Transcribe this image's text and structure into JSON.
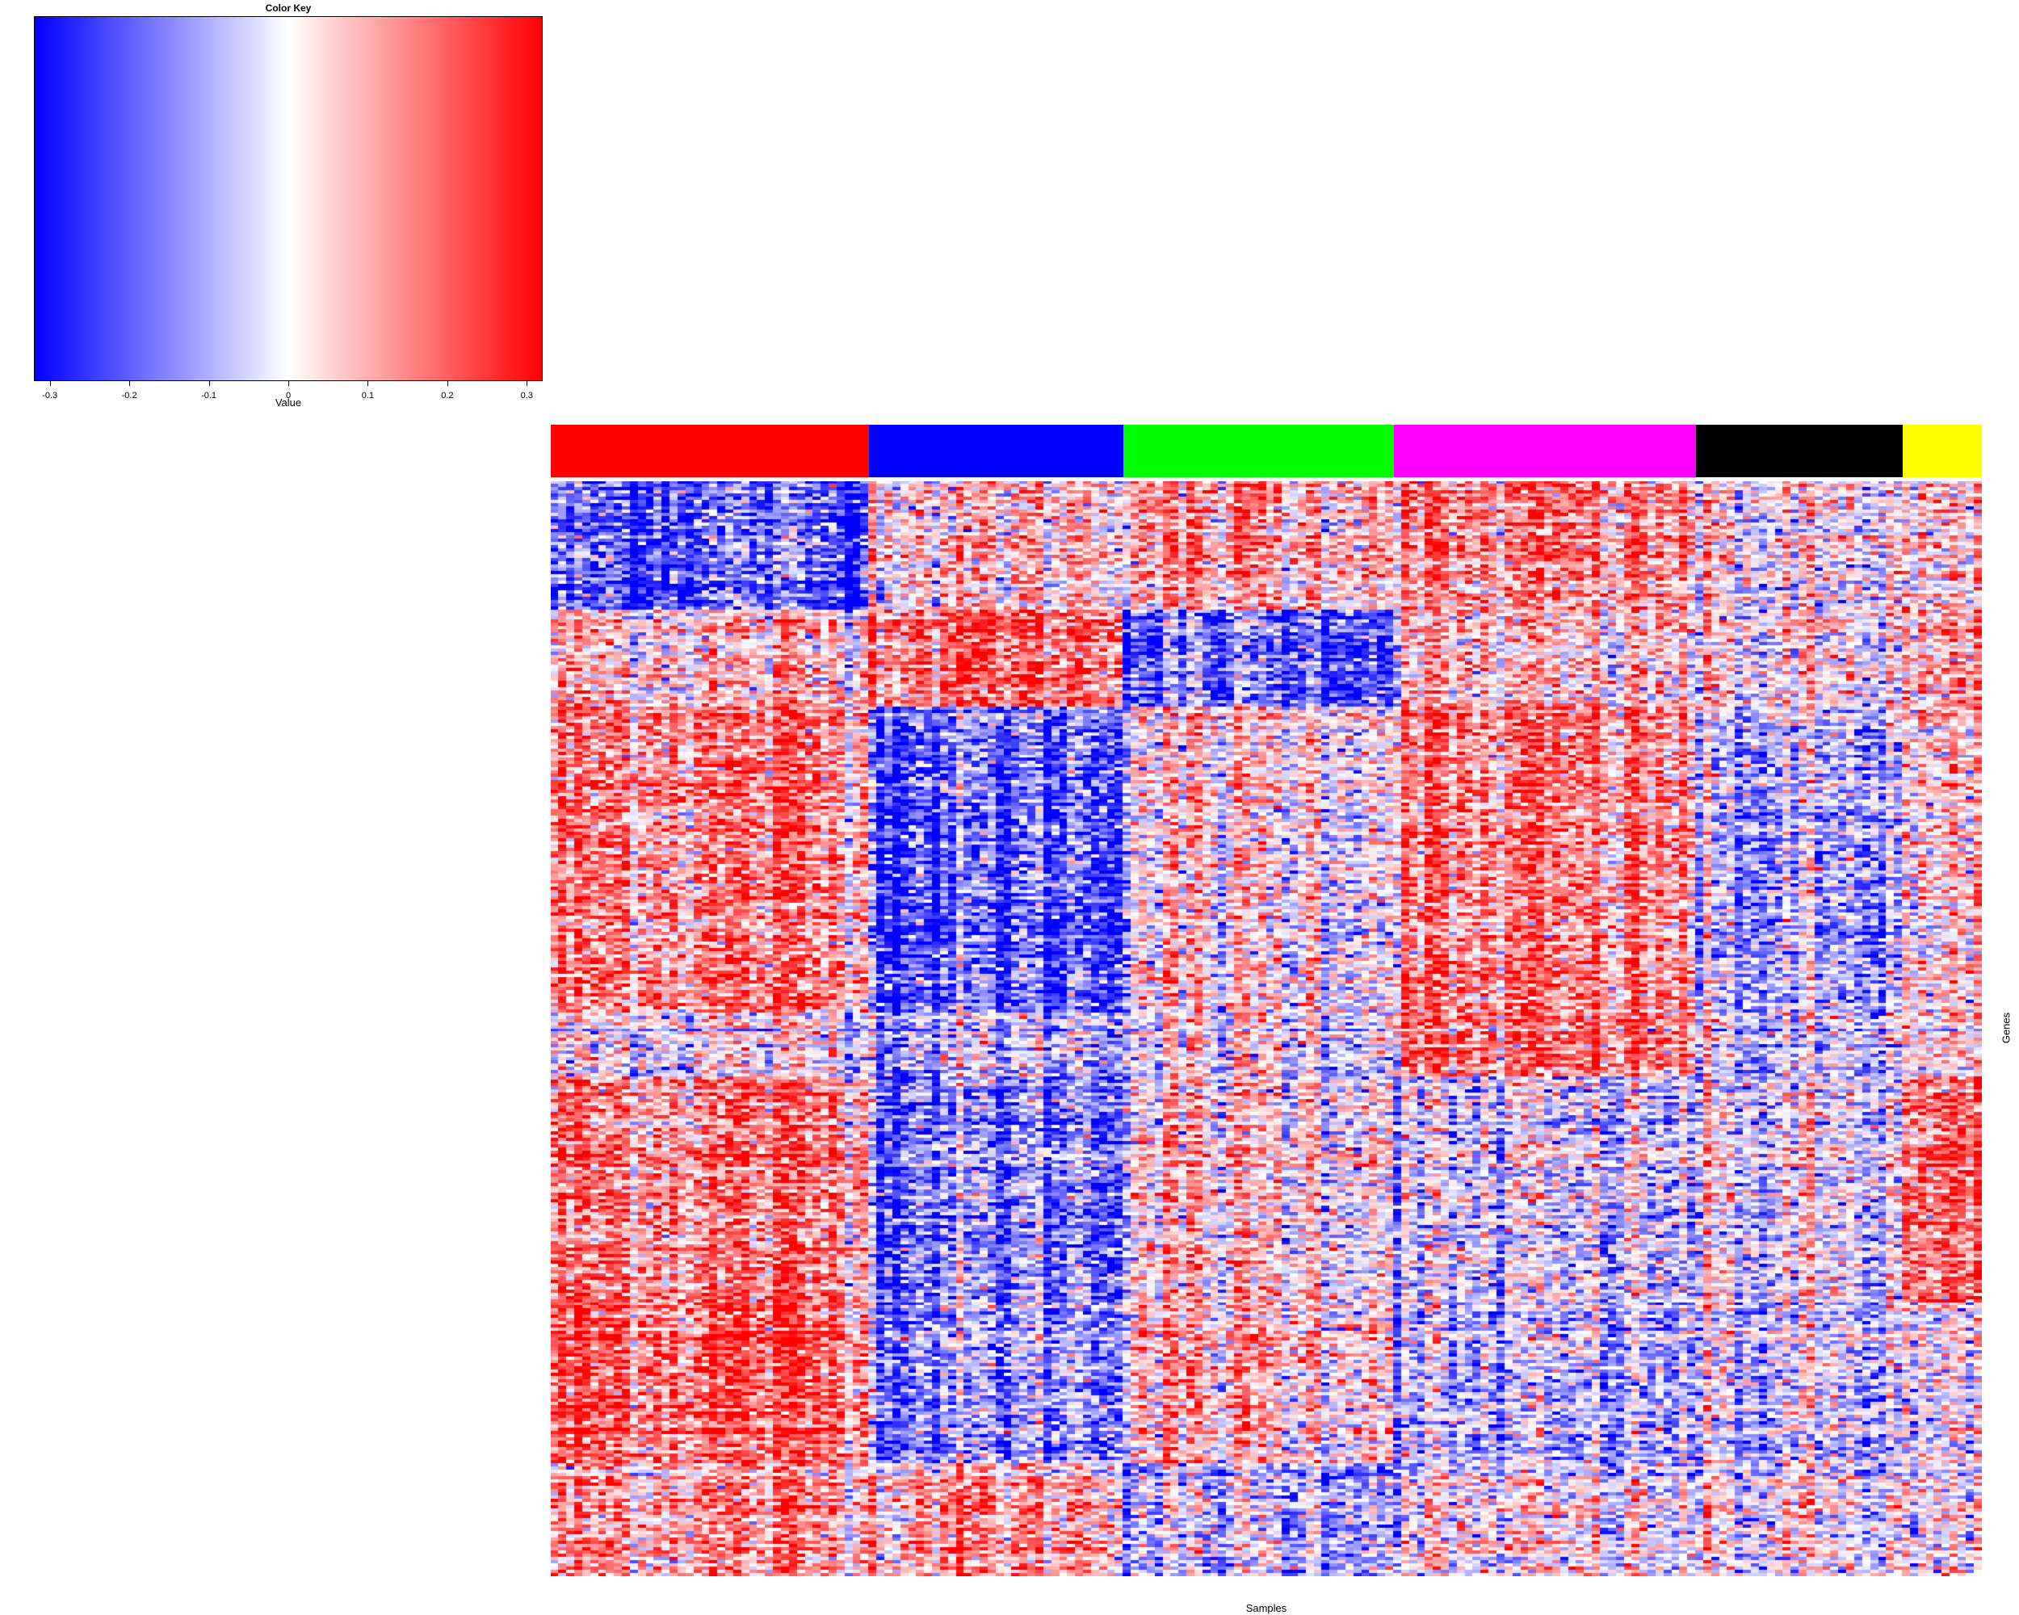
{
  "chart_data": {
    "type": "heatmap",
    "title": "",
    "xlabel": "Samples",
    "ylabel": "Genes",
    "color_key": {
      "title": "Color Key",
      "xlabel": "Value",
      "range": [
        -0.32,
        0.32
      ],
      "ticks": [
        -0.3,
        -0.2,
        -0.1,
        0,
        0.1,
        0.2,
        0.3
      ],
      "tick_labels": [
        "-0.3",
        "-0.2",
        "-0.1",
        "0",
        "0.1",
        "0.2",
        "0.3"
      ],
      "low_color": "#0000ff",
      "mid_color": "#ffffff",
      "high_color": "#ff0000"
    },
    "n_samples": 180,
    "n_genes": 340,
    "column_groups": [
      {
        "color": "#ff0000",
        "n_samples": 40
      },
      {
        "color": "#0000ff",
        "n_samples": 32
      },
      {
        "color": "#00ff00",
        "n_samples": 34
      },
      {
        "color": "#ff00ff",
        "n_samples": 38
      },
      {
        "color": "#000000",
        "n_samples": 26
      },
      {
        "color": "#ffff00",
        "n_samples": 10
      }
    ],
    "row_blocks": [
      {
        "n_genes": 40,
        "group_means": [
          -0.15,
          0.05,
          0.08,
          0.1,
          0.0,
          0.0
        ]
      },
      {
        "n_genes": 30,
        "group_means": [
          0.05,
          0.15,
          -0.15,
          0.03,
          0.0,
          0.05
        ]
      },
      {
        "n_genes": 95,
        "group_means": [
          0.12,
          -0.15,
          0.02,
          0.1,
          -0.08,
          0.0
        ]
      },
      {
        "n_genes": 20,
        "group_means": [
          0.0,
          -0.05,
          0.0,
          0.12,
          -0.05,
          0.0
        ]
      },
      {
        "n_genes": 70,
        "group_means": [
          0.12,
          -0.12,
          0.03,
          -0.05,
          -0.03,
          0.1
        ]
      },
      {
        "n_genes": 50,
        "group_means": [
          0.15,
          -0.1,
          0.05,
          -0.08,
          -0.05,
          -0.05
        ]
      },
      {
        "n_genes": 35,
        "group_means": [
          0.1,
          0.1,
          -0.05,
          0.0,
          0.0,
          -0.03
        ]
      }
    ]
  }
}
